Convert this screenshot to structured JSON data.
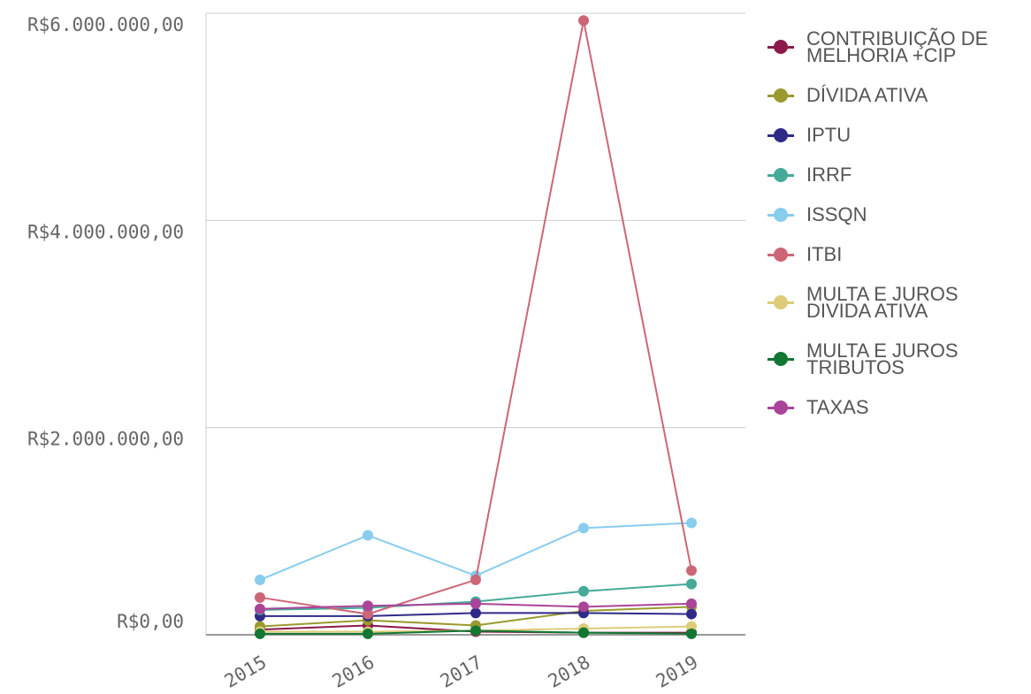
{
  "chart_data": {
    "type": "line",
    "categories": [
      "2015",
      "2016",
      "2017",
      "2018",
      "2019"
    ],
    "series": [
      {
        "name": "CONTRIBUIÇÃO DE MELHORIA +CIP",
        "color": "#8b1a4a",
        "values": [
          50000,
          90000,
          30000,
          20000,
          20000
        ]
      },
      {
        "name": "DÍVIDA ATIVA",
        "color": "#9a9a2e",
        "values": [
          80000,
          140000,
          90000,
          230000,
          270000
        ]
      },
      {
        "name": "IPTU",
        "color": "#2f2a87",
        "values": [
          180000,
          180000,
          210000,
          210000,
          200000
        ]
      },
      {
        "name": "IRRF",
        "color": "#45aa98",
        "values": [
          240000,
          260000,
          320000,
          420000,
          490000
        ]
      },
      {
        "name": "ISSQN",
        "color": "#88ccee",
        "values": [
          530000,
          960000,
          570000,
          1030000,
          1080000
        ]
      },
      {
        "name": "ITBI",
        "color": "#cc6677",
        "values": [
          360000,
          200000,
          530000,
          5930000,
          620000
        ]
      },
      {
        "name": "MULTA E JUROS DIVIDA ATIVA",
        "color": "#ddcc77",
        "values": [
          30000,
          30000,
          40000,
          60000,
          80000
        ]
      },
      {
        "name": "MULTA E JUROS TRIBUTOS",
        "color": "#117733",
        "values": [
          10000,
          10000,
          40000,
          20000,
          10000
        ]
      },
      {
        "name": "TAXAS",
        "color": "#aa4499",
        "values": [
          250000,
          280000,
          300000,
          270000,
          300000
        ]
      }
    ],
    "ylim": [
      0,
      6000000
    ],
    "yticks": [
      {
        "value": 0,
        "label": "R$0,00"
      },
      {
        "value": 2000000,
        "label": "R$2.000.000,00"
      },
      {
        "value": 4000000,
        "label": "R$4.000.000,00"
      },
      {
        "value": 6000000,
        "label": "R$6.000.000,00"
      }
    ],
    "grid": true
  }
}
